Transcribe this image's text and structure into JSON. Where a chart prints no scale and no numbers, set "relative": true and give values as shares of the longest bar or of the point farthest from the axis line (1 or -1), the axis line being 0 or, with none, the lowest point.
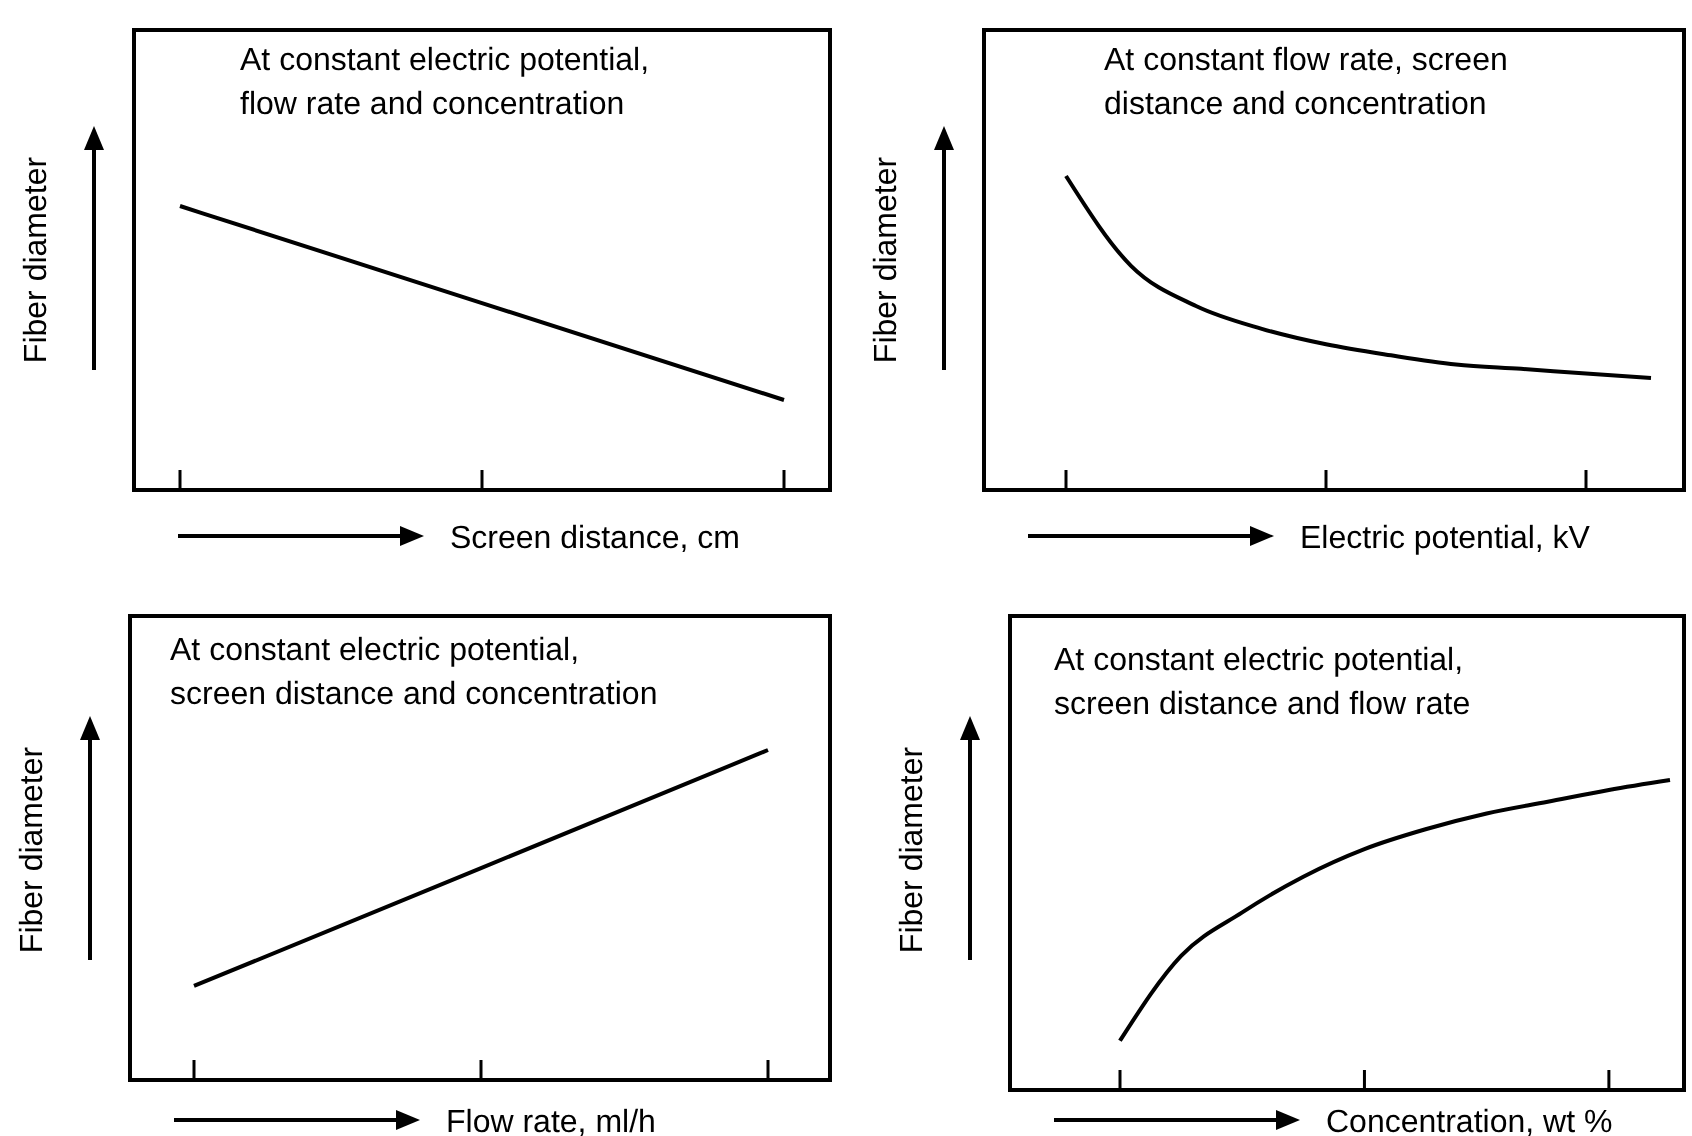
{
  "chart_data": [
    {
      "type": "line",
      "relative": true,
      "categories": [
        null,
        null,
        null
      ],
      "xlabel": "Screen distance, cm",
      "ylabel": "Fiber diameter",
      "annotations": [
        "At constant electric potential,\nflow rate and concentration"
      ],
      "series": [
        {
          "color": "#000000",
          "values": [
            1,
            0.658,
            0.317
          ]
        }
      ]
    },
    {
      "type": "line",
      "relative": true,
      "categories": [
        null,
        null,
        null,
        null,
        null,
        null,
        null,
        null,
        null,
        null
      ],
      "xlabel": "Electric potential, kV",
      "ylabel": "Fiber diameter",
      "annotations": [
        "At constant flow rate, screen\ndistance and concentration"
      ],
      "series": [
        {
          "color": "#000000",
          "values": [
            1,
            0.714,
            0.586,
            0.514,
            0.464,
            0.429,
            0.4,
            0.386,
            0.371,
            0.357
          ]
        }
      ]
    },
    {
      "type": "line",
      "relative": true,
      "categories": [
        null,
        null,
        null
      ],
      "xlabel": "Flow rate, ml/h",
      "ylabel": "Fiber diameter",
      "annotations": [
        "At constant electric potential,\nscreen distance and concentration"
      ],
      "series": [
        {
          "color": "#000000",
          "values": [
            0.285,
            0.642,
            1
          ]
        }
      ]
    },
    {
      "type": "line",
      "relative": true,
      "categories": [
        null,
        null,
        null,
        null,
        null,
        null,
        null,
        null,
        null,
        null
      ],
      "xlabel": "Concentration, wt %",
      "ylabel": "Fiber diameter",
      "annotations": [
        "At constant electric potential,\nscreen distance and flow rate"
      ],
      "series": [
        {
          "color": "#000000",
          "values": [
            0.159,
            0.433,
            0.573,
            0.688,
            0.777,
            0.841,
            0.892,
            0.93,
            0.968,
            1
          ]
        }
      ]
    }
  ]
}
